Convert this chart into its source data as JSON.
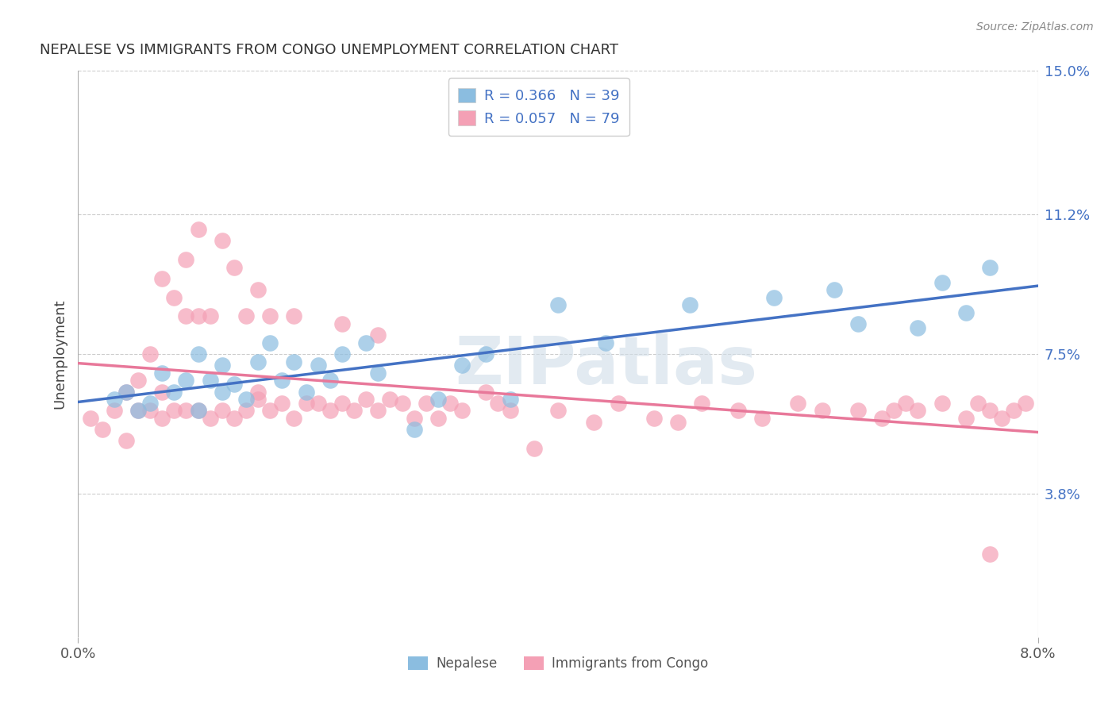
{
  "title": "NEPALESE VS IMMIGRANTS FROM CONGO UNEMPLOYMENT CORRELATION CHART",
  "source": "Source: ZipAtlas.com",
  "ylabel": "Unemployment",
  "x_min": 0.0,
  "x_max": 0.08,
  "y_min": 0.0,
  "y_max": 0.15,
  "y_tick_labels_right": [
    "15.0%",
    "11.2%",
    "7.5%",
    "3.8%"
  ],
  "y_tick_values_right": [
    0.15,
    0.112,
    0.075,
    0.038
  ],
  "nepalese_color": "#8bbde0",
  "congo_color": "#f4a0b5",
  "nepalese_line_color": "#4472c4",
  "congo_line_color": "#e8789a",
  "legend_text_color": "#4472c4",
  "R_nepalese": 0.366,
  "N_nepalese": 39,
  "R_congo": 0.057,
  "N_congo": 79,
  "watermark": "ZIPatlas",
  "nepalese_x": [
    0.003,
    0.004,
    0.005,
    0.006,
    0.007,
    0.008,
    0.009,
    0.01,
    0.01,
    0.011,
    0.012,
    0.012,
    0.013,
    0.014,
    0.015,
    0.016,
    0.017,
    0.018,
    0.019,
    0.02,
    0.021,
    0.022,
    0.024,
    0.025,
    0.028,
    0.03,
    0.032,
    0.034,
    0.036,
    0.04,
    0.044,
    0.051,
    0.058,
    0.063,
    0.065,
    0.07,
    0.072,
    0.074,
    0.076
  ],
  "nepalese_y": [
    0.063,
    0.065,
    0.06,
    0.062,
    0.07,
    0.065,
    0.068,
    0.06,
    0.075,
    0.068,
    0.065,
    0.072,
    0.067,
    0.063,
    0.073,
    0.078,
    0.068,
    0.073,
    0.065,
    0.072,
    0.068,
    0.075,
    0.078,
    0.07,
    0.055,
    0.063,
    0.072,
    0.075,
    0.063,
    0.088,
    0.078,
    0.088,
    0.09,
    0.092,
    0.083,
    0.082,
    0.094,
    0.086,
    0.098
  ],
  "congo_x": [
    0.001,
    0.002,
    0.003,
    0.004,
    0.004,
    0.005,
    0.005,
    0.006,
    0.006,
    0.007,
    0.007,
    0.007,
    0.008,
    0.008,
    0.009,
    0.009,
    0.009,
    0.01,
    0.01,
    0.01,
    0.011,
    0.011,
    0.012,
    0.012,
    0.013,
    0.013,
    0.014,
    0.014,
    0.015,
    0.015,
    0.015,
    0.016,
    0.016,
    0.017,
    0.018,
    0.018,
    0.019,
    0.02,
    0.021,
    0.022,
    0.022,
    0.023,
    0.024,
    0.025,
    0.025,
    0.026,
    0.027,
    0.028,
    0.029,
    0.03,
    0.031,
    0.032,
    0.034,
    0.035,
    0.036,
    0.038,
    0.04,
    0.043,
    0.045,
    0.048,
    0.05,
    0.052,
    0.055,
    0.057,
    0.06,
    0.062,
    0.065,
    0.067,
    0.068,
    0.069,
    0.07,
    0.072,
    0.074,
    0.075,
    0.076,
    0.077,
    0.078,
    0.079,
    0.076
  ],
  "congo_y": [
    0.058,
    0.055,
    0.06,
    0.052,
    0.065,
    0.06,
    0.068,
    0.06,
    0.075,
    0.058,
    0.065,
    0.095,
    0.06,
    0.09,
    0.06,
    0.085,
    0.1,
    0.06,
    0.085,
    0.108,
    0.058,
    0.085,
    0.06,
    0.105,
    0.058,
    0.098,
    0.06,
    0.085,
    0.063,
    0.092,
    0.065,
    0.06,
    0.085,
    0.062,
    0.058,
    0.085,
    0.062,
    0.062,
    0.06,
    0.083,
    0.062,
    0.06,
    0.063,
    0.06,
    0.08,
    0.063,
    0.062,
    0.058,
    0.062,
    0.058,
    0.062,
    0.06,
    0.065,
    0.062,
    0.06,
    0.05,
    0.06,
    0.057,
    0.062,
    0.058,
    0.057,
    0.062,
    0.06,
    0.058,
    0.062,
    0.06,
    0.06,
    0.058,
    0.06,
    0.062,
    0.06,
    0.062,
    0.058,
    0.062,
    0.06,
    0.058,
    0.06,
    0.062,
    0.022
  ]
}
